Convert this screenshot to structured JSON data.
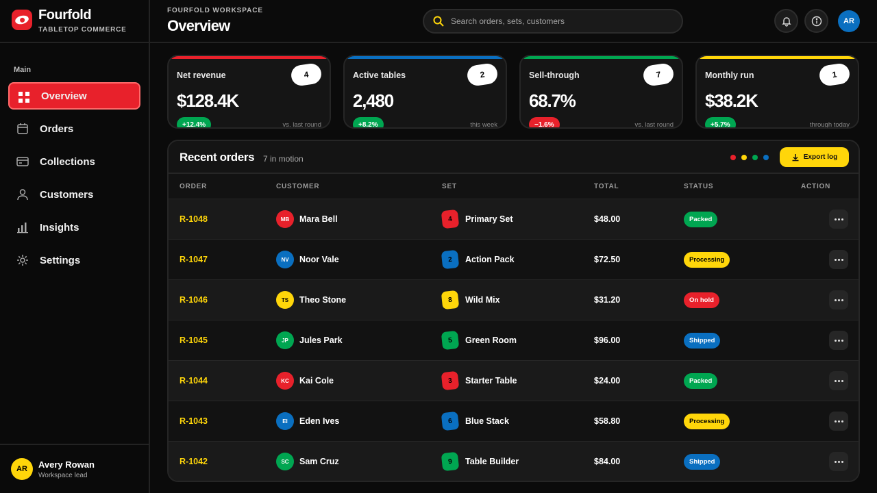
{
  "brand": {
    "name": "Fourfold",
    "tagline": "TABLETOP COMMERCE"
  },
  "sidebar": {
    "section_label": "Main",
    "items": [
      {
        "label": "Overview",
        "icon": "grid-icon",
        "active": true
      },
      {
        "label": "Orders",
        "icon": "calendar-icon"
      },
      {
        "label": "Collections",
        "icon": "cards-icon"
      },
      {
        "label": "Customers",
        "icon": "user-icon"
      },
      {
        "label": "Insights",
        "icon": "bar-chart-icon"
      },
      {
        "label": "Settings",
        "icon": "gear-icon"
      }
    ],
    "user": {
      "initials": "AR",
      "name": "Avery Rowan",
      "role": "Workspace lead"
    }
  },
  "header": {
    "kicker": "FOURFOLD WORKSPACE",
    "title": "Overview",
    "search_placeholder": "Search orders, sets, customers",
    "avatar_initials": "AR"
  },
  "cards": [
    {
      "label": "Net revenue",
      "value": "$128.4K",
      "die": "4",
      "delta": "+12.4%",
      "note": "vs. last round",
      "accent": "#e8212b",
      "delta_color": "#00a651"
    },
    {
      "label": "Active tables",
      "value": "2,480",
      "die": "2",
      "delta": "+8.2%",
      "note": "this week",
      "accent": "#0a6fc0",
      "delta_color": "#00a651"
    },
    {
      "label": "Sell-through",
      "value": "68.7%",
      "die": "7",
      "delta": "−1.6%",
      "note": "vs. last round",
      "accent": "#00a651",
      "delta_color": "#e8212b"
    },
    {
      "label": "Monthly run",
      "value": "$38.2K",
      "die": "1",
      "delta": "+5.7%",
      "note": "through today",
      "accent": "#ffd60a",
      "delta_color": "#00a651"
    }
  ],
  "orders": {
    "title": "Recent orders",
    "subtitle": "7 in motion",
    "export_label": "Export log",
    "legend_colors": [
      "#e8212b",
      "#ffd60a",
      "#00a651",
      "#0a6fc0"
    ],
    "columns": [
      "ORDER",
      "CUSTOMER",
      "SET",
      "TOTAL",
      "STATUS",
      "ACTION"
    ],
    "rows": [
      {
        "id": "R-1048",
        "initials": "MB",
        "customer": "Mara Bell",
        "cust_color": "#e8212b",
        "die": "4",
        "die_color": "#e8212b",
        "set": "Primary Set",
        "total": "$48.00",
        "status": "Packed",
        "status_color": "#00a651"
      },
      {
        "id": "R-1047",
        "initials": "NV",
        "customer": "Noor Vale",
        "cust_color": "#0a6fc0",
        "die": "2",
        "die_color": "#0a6fc0",
        "set": "Action Pack",
        "total": "$72.50",
        "status": "Processing",
        "status_color": "#ffd60a"
      },
      {
        "id": "R-1046",
        "initials": "TS",
        "customer": "Theo Stone",
        "cust_color": "#ffd60a",
        "die": "8",
        "die_color": "#ffd60a",
        "set": "Wild Mix",
        "total": "$31.20",
        "status": "On hold",
        "status_color": "#e8212b"
      },
      {
        "id": "R-1045",
        "initials": "JP",
        "customer": "Jules Park",
        "cust_color": "#00a651",
        "die": "5",
        "die_color": "#00a651",
        "set": "Green Room",
        "total": "$96.00",
        "status": "Shipped",
        "status_color": "#0a6fc0"
      },
      {
        "id": "R-1044",
        "initials": "KC",
        "customer": "Kai Cole",
        "cust_color": "#e8212b",
        "die": "3",
        "die_color": "#e8212b",
        "set": "Starter Table",
        "total": "$24.00",
        "status": "Packed",
        "status_color": "#00a651"
      },
      {
        "id": "R-1043",
        "initials": "EI",
        "customer": "Eden Ives",
        "cust_color": "#0a6fc0",
        "die": "6",
        "die_color": "#0a6fc0",
        "set": "Blue Stack",
        "total": "$58.80",
        "status": "Processing",
        "status_color": "#ffd60a"
      },
      {
        "id": "R-1042",
        "initials": "SC",
        "customer": "Sam Cruz",
        "cust_color": "#00a651",
        "die": "9",
        "die_color": "#00a651",
        "set": "Table Builder",
        "total": "$84.00",
        "status": "Shipped",
        "status_color": "#0a6fc0"
      }
    ]
  }
}
